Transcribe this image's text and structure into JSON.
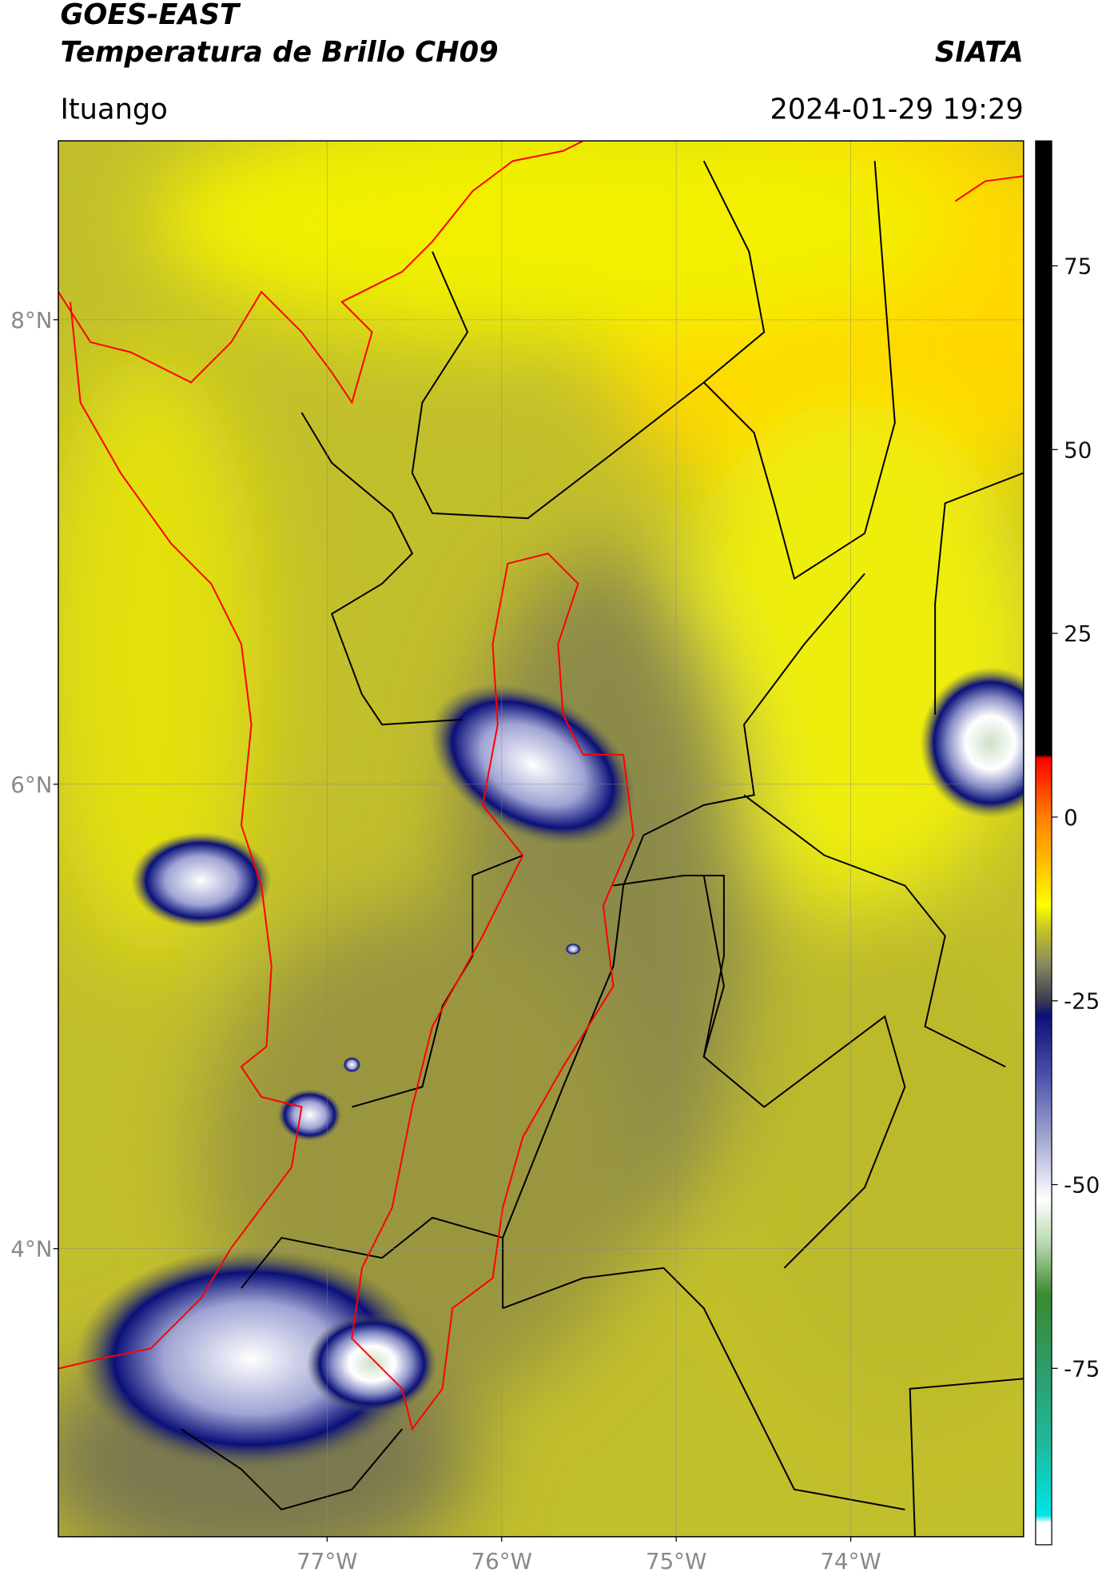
{
  "header": {
    "title": "GOES-EAST",
    "subtitle": "Temperatura de Brillo CH09",
    "source": "SIATA",
    "region": "Ituango",
    "datetime": "2024-01-29 19:29"
  },
  "map": {
    "xlim": [
      -78.54,
      -73.01
    ],
    "ylim": [
      2.76,
      8.77
    ],
    "grid": true,
    "yticks": [
      {
        "value": 8,
        "label": "8°N"
      },
      {
        "value": 6,
        "label": "6°N"
      },
      {
        "value": 4,
        "label": "4°N"
      }
    ],
    "xticks": [
      {
        "value": -77,
        "label": "77°W"
      },
      {
        "value": -76,
        "label": "76°W"
      },
      {
        "value": -75,
        "label": "75°W"
      },
      {
        "value": -74,
        "label": "74°W"
      }
    ]
  },
  "colorbar": {
    "ylim": [
      -99,
      92
    ],
    "yticks": [
      75,
      50,
      25,
      0,
      -25,
      -50,
      -75
    ],
    "colorscale": [
      {
        "value": -99,
        "color": "#ffffff"
      },
      {
        "value": -96,
        "color": "#ffffff"
      },
      {
        "value": -95,
        "color": "#00e5e5"
      },
      {
        "value": -85,
        "color": "#1fb89a"
      },
      {
        "value": -75,
        "color": "#2e9c6a"
      },
      {
        "value": -65,
        "color": "#3a8a2e"
      },
      {
        "value": -58,
        "color": "#b8d8b0"
      },
      {
        "value": -52,
        "color": "#ffffff"
      },
      {
        "value": -45,
        "color": "#b0b4d8"
      },
      {
        "value": -35,
        "color": "#4a50a8"
      },
      {
        "value": -27,
        "color": "#0a1078"
      },
      {
        "value": -25,
        "color": "#3a3a50"
      },
      {
        "value": -20,
        "color": "#8a8a60"
      },
      {
        "value": -15,
        "color": "#c8c820"
      },
      {
        "value": -12,
        "color": "#ffff00"
      },
      {
        "value": -5,
        "color": "#ffb000"
      },
      {
        "value": 0,
        "color": "#ff8000"
      },
      {
        "value": 8,
        "color": "#ff0000"
      },
      {
        "value": 8.5,
        "color": "#000000"
      },
      {
        "value": 92,
        "color": "#000000"
      }
    ]
  }
}
